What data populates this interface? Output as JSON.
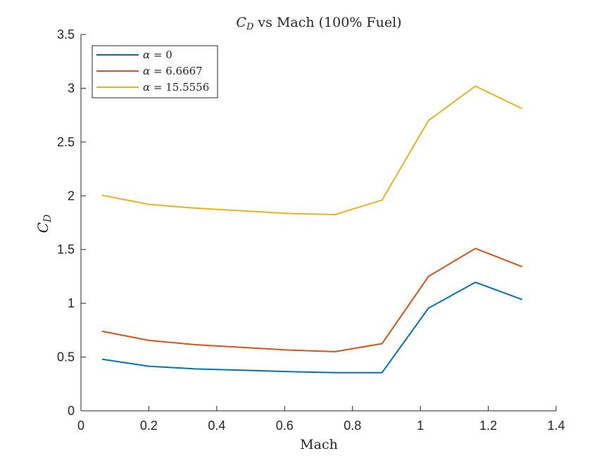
{
  "chart_data": {
    "type": "line",
    "title": "C_D vs Mach (100% Fuel)",
    "title_parts": {
      "symbol": "C",
      "subscript": "D",
      "rest": " vs Mach (100% Fuel)"
    },
    "xlabel": "Mach",
    "ylabel": "C_D",
    "ylabel_parts": {
      "symbol": "C",
      "subscript": "D"
    },
    "xlim": [
      0,
      1.4
    ],
    "ylim": [
      0,
      3.5
    ],
    "xticks": [
      0,
      0.2,
      0.4,
      0.6,
      0.8,
      1,
      1.2,
      1.4
    ],
    "xtick_labels": [
      "0",
      "0.2",
      "0.4",
      "0.6",
      "0.8",
      "1",
      "1.2",
      "1.4"
    ],
    "yticks": [
      0,
      0.5,
      1,
      1.5,
      2,
      2.5,
      3,
      3.5
    ],
    "ytick_labels": [
      "0",
      "0.5",
      "1",
      "1.5",
      "2",
      "2.5",
      "3",
      "3.5"
    ],
    "grid": false,
    "legend_position": "top-left",
    "x": [
      0.062,
      0.2,
      0.337,
      0.612,
      0.749,
      0.887,
      1.024,
      1.162,
      1.3
    ],
    "series": [
      {
        "name": "α = 0",
        "name_value": "0",
        "color": "#0072BD",
        "values": [
          0.48,
          0.415,
          0.39,
          0.365,
          0.355,
          0.355,
          0.955,
          1.195,
          1.035
        ]
      },
      {
        "name": "α = 6.6667",
        "name_value": "6.6667",
        "color": "#D95319",
        "values": [
          0.74,
          0.655,
          0.615,
          0.565,
          0.55,
          0.625,
          1.25,
          1.51,
          1.34
        ]
      },
      {
        "name": "α = 15.5556",
        "name_value": "15.5556",
        "color": "#EDB120",
        "values": [
          2.005,
          1.92,
          1.885,
          1.835,
          1.825,
          1.96,
          2.7,
          3.02,
          2.81
        ]
      }
    ]
  }
}
